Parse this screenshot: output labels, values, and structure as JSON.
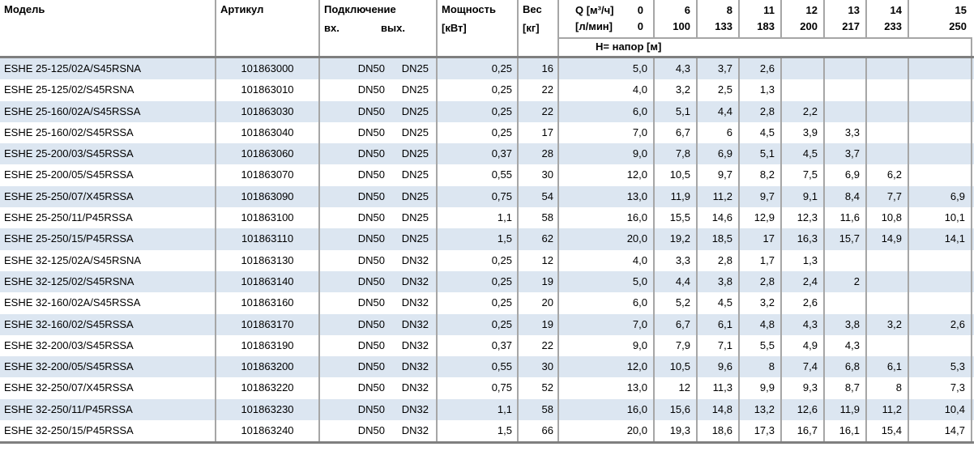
{
  "colors": {
    "row_stripe": "#dce6f1",
    "grid_border": "#a6a6a6",
    "header_rule": "#7f7f7f",
    "text": "#000000"
  },
  "table": {
    "header": {
      "model": "Модель",
      "article": "Артикул",
      "connection": "Подключение",
      "conn_in": "вх.",
      "conn_out": "вых.",
      "power_line1": "Мощность",
      "power_line2": "[кВт]",
      "weight_line1": "Вес",
      "weight_line2": "[кг]",
      "q_label": "Q [м³/ч]",
      "q_zero": "0",
      "lmin_label": "[л/мин]",
      "lmin_zero": "0",
      "head_label": "Н= напор [м]",
      "q_columns": [
        {
          "q": "6",
          "lmin": "100"
        },
        {
          "q": "8",
          "lmin": "133"
        },
        {
          "q": "11",
          "lmin": "183"
        },
        {
          "q": "12",
          "lmin": "200"
        },
        {
          "q": "13",
          "lmin": "217"
        },
        {
          "q": "14",
          "lmin": "233"
        },
        {
          "q": "15",
          "lmin": "250"
        }
      ]
    },
    "rows": [
      {
        "model": "ESHE 25-125/02A/S45RSNA",
        "article": "101863000",
        "inlet": "DN50",
        "outlet": "DN25",
        "power": "0,25",
        "weight": "16",
        "heads": [
          "5,0",
          "4,3",
          "3,7",
          "2,6",
          "",
          "",
          "",
          ""
        ]
      },
      {
        "model": "ESHE 25-125/02/S45RSNA",
        "article": "101863010",
        "inlet": "DN50",
        "outlet": "DN25",
        "power": "0,25",
        "weight": "22",
        "heads": [
          "4,0",
          "3,2",
          "2,5",
          "1,3",
          "",
          "",
          "",
          ""
        ]
      },
      {
        "model": "ESHE 25-160/02A/S45RSSA",
        "article": "101863030",
        "inlet": "DN50",
        "outlet": "DN25",
        "power": "0,25",
        "weight": "22",
        "heads": [
          "6,0",
          "5,1",
          "4,4",
          "2,8",
          "2,2",
          "",
          "",
          ""
        ]
      },
      {
        "model": "ESHE 25-160/02/S45RSSA",
        "article": "101863040",
        "inlet": "DN50",
        "outlet": "DN25",
        "power": "0,25",
        "weight": "17",
        "heads": [
          "7,0",
          "6,7",
          "6",
          "4,5",
          "3,9",
          "3,3",
          "",
          ""
        ]
      },
      {
        "model": "ESHE 25-200/03/S45RSSA",
        "article": "101863060",
        "inlet": "DN50",
        "outlet": "DN25",
        "power": "0,37",
        "weight": "28",
        "heads": [
          "9,0",
          "7,8",
          "6,9",
          "5,1",
          "4,5",
          "3,7",
          "",
          ""
        ]
      },
      {
        "model": "ESHE 25-200/05/S45RSSA",
        "article": "101863070",
        "inlet": "DN50",
        "outlet": "DN25",
        "power": "0,55",
        "weight": "30",
        "heads": [
          "12,0",
          "10,5",
          "9,7",
          "8,2",
          "7,5",
          "6,9",
          "6,2",
          ""
        ]
      },
      {
        "model": "ESHE 25-250/07/X45RSSA",
        "article": "101863090",
        "inlet": "DN50",
        "outlet": "DN25",
        "power": "0,75",
        "weight": "54",
        "heads": [
          "13,0",
          "11,9",
          "11,2",
          "9,7",
          "9,1",
          "8,4",
          "7,7",
          "6,9"
        ]
      },
      {
        "model": "ESHE 25-250/11/P45RSSA",
        "article": "101863100",
        "inlet": "DN50",
        "outlet": "DN25",
        "power": "1,1",
        "weight": "58",
        "heads": [
          "16,0",
          "15,5",
          "14,6",
          "12,9",
          "12,3",
          "11,6",
          "10,8",
          "10,1"
        ]
      },
      {
        "model": "ESHE 25-250/15/P45RSSA",
        "article": "101863110",
        "inlet": "DN50",
        "outlet": "DN25",
        "power": "1,5",
        "weight": "62",
        "heads": [
          "20,0",
          "19,2",
          "18,5",
          "17",
          "16,3",
          "15,7",
          "14,9",
          "14,1"
        ]
      },
      {
        "model": "ESHE 32-125/02A/S45RSNA",
        "article": "101863130",
        "inlet": "DN50",
        "outlet": "DN32",
        "power": "0,25",
        "weight": "12",
        "heads": [
          "4,0",
          "3,3",
          "2,8",
          "1,7",
          "1,3",
          "",
          "",
          ""
        ]
      },
      {
        "model": "ESHE 32-125/02/S45RSNA",
        "article": "101863140",
        "inlet": "DN50",
        "outlet": "DN32",
        "power": "0,25",
        "weight": "19",
        "heads": [
          "5,0",
          "4,4",
          "3,8",
          "2,8",
          "2,4",
          "2",
          "",
          ""
        ]
      },
      {
        "model": "ESHE 32-160/02A/S45RSSA",
        "article": "101863160",
        "inlet": "DN50",
        "outlet": "DN32",
        "power": "0,25",
        "weight": "20",
        "heads": [
          "6,0",
          "5,2",
          "4,5",
          "3,2",
          "2,6",
          "",
          "",
          ""
        ]
      },
      {
        "model": "ESHE 32-160/02/S45RSSA",
        "article": "101863170",
        "inlet": "DN50",
        "outlet": "DN32",
        "power": "0,25",
        "weight": "19",
        "heads": [
          "7,0",
          "6,7",
          "6,1",
          "4,8",
          "4,3",
          "3,8",
          "3,2",
          "2,6"
        ]
      },
      {
        "model": "ESHE 32-200/03/S45RSSA",
        "article": "101863190",
        "inlet": "DN50",
        "outlet": "DN32",
        "power": "0,37",
        "weight": "22",
        "heads": [
          "9,0",
          "7,9",
          "7,1",
          "5,5",
          "4,9",
          "4,3",
          "",
          ""
        ]
      },
      {
        "model": "ESHE 32-200/05/S45RSSA",
        "article": "101863200",
        "inlet": "DN50",
        "outlet": "DN32",
        "power": "0,55",
        "weight": "30",
        "heads": [
          "12,0",
          "10,5",
          "9,6",
          "8",
          "7,4",
          "6,8",
          "6,1",
          "5,3"
        ]
      },
      {
        "model": "ESHE 32-250/07/X45RSSA",
        "article": "101863220",
        "inlet": "DN50",
        "outlet": "DN32",
        "power": "0,75",
        "weight": "52",
        "heads": [
          "13,0",
          "12",
          "11,3",
          "9,9",
          "9,3",
          "8,7",
          "8",
          "7,3"
        ]
      },
      {
        "model": "ESHE 32-250/11/P45RSSA",
        "article": "101863230",
        "inlet": "DN50",
        "outlet": "DN32",
        "power": "1,1",
        "weight": "58",
        "heads": [
          "16,0",
          "15,6",
          "14,8",
          "13,2",
          "12,6",
          "11,9",
          "11,2",
          "10,4"
        ]
      },
      {
        "model": "ESHE 32-250/15/P45RSSA",
        "article": "101863240",
        "inlet": "DN50",
        "outlet": "DN32",
        "power": "1,5",
        "weight": "66",
        "heads": [
          "20,0",
          "19,3",
          "18,6",
          "17,3",
          "16,7",
          "16,1",
          "15,4",
          "14,7"
        ]
      }
    ]
  }
}
